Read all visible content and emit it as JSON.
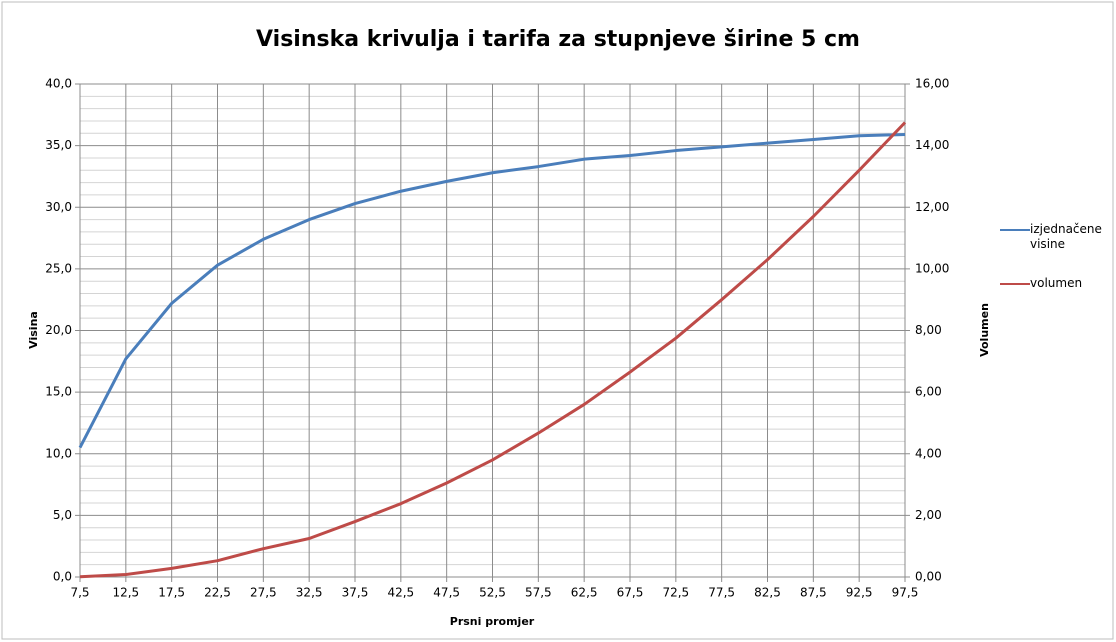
{
  "chart_data": {
    "type": "line",
    "title": "Visinska krivulja i tarifa za stupnjeve širine 5 cm",
    "x_label": "Prsni promjer",
    "y_label": "Visina",
    "y2_label": "Volumen",
    "categories": [
      "7,5",
      "12,5",
      "17,5",
      "22,5",
      "27,5",
      "32,5",
      "37,5",
      "42,5",
      "47,5",
      "52,5",
      "57,5",
      "62,5",
      "67,5",
      "72,5",
      "77,5",
      "82,5",
      "87,5",
      "92,5",
      "97,5"
    ],
    "series": [
      {
        "name": "izjednačene visine",
        "color": "#4a7ebb",
        "values": [
          10.5,
          17.7,
          22.2,
          25.3,
          27.4,
          29.0,
          30.3,
          31.3,
          32.1,
          32.8,
          33.3,
          33.9,
          34.2,
          34.6,
          34.9,
          35.2,
          35.5,
          35.8,
          35.9
        ]
      },
      {
        "name": "volumen",
        "color": "#be4b48",
        "axis": "y2",
        "values": [
          0.01,
          0.08,
          0.28,
          0.53,
          0.92,
          1.25,
          1.8,
          2.38,
          3.05,
          3.8,
          4.67,
          5.6,
          6.65,
          7.75,
          9.0,
          10.3,
          11.7,
          13.2,
          14.75
        ]
      }
    ],
    "ylim": [
      0,
      40
    ],
    "yticks": [
      {
        "value": 0,
        "label": "0,0"
      },
      {
        "value": 5,
        "label": "5,0"
      },
      {
        "value": 10,
        "label": "10,0"
      },
      {
        "value": 15,
        "label": "15,0"
      },
      {
        "value": 20,
        "label": "20,0"
      },
      {
        "value": 25,
        "label": "25,0"
      },
      {
        "value": 30,
        "label": "30,0"
      },
      {
        "value": 35,
        "label": "35,0"
      },
      {
        "value": 40,
        "label": "40,0"
      }
    ],
    "y2lim": [
      0,
      16
    ],
    "y2ticks": [
      {
        "value": 0,
        "label": "0,00"
      },
      {
        "value": 2,
        "label": "2,00"
      },
      {
        "value": 4,
        "label": "4,00"
      },
      {
        "value": 6,
        "label": "6,00"
      },
      {
        "value": 8,
        "label": "8,00"
      },
      {
        "value": 10,
        "label": "10,00"
      },
      {
        "value": 12,
        "label": "12,00"
      },
      {
        "value": 14,
        "label": "14,00"
      },
      {
        "value": 16,
        "label": "16,00"
      }
    ],
    "grid": true,
    "legend": "right"
  }
}
